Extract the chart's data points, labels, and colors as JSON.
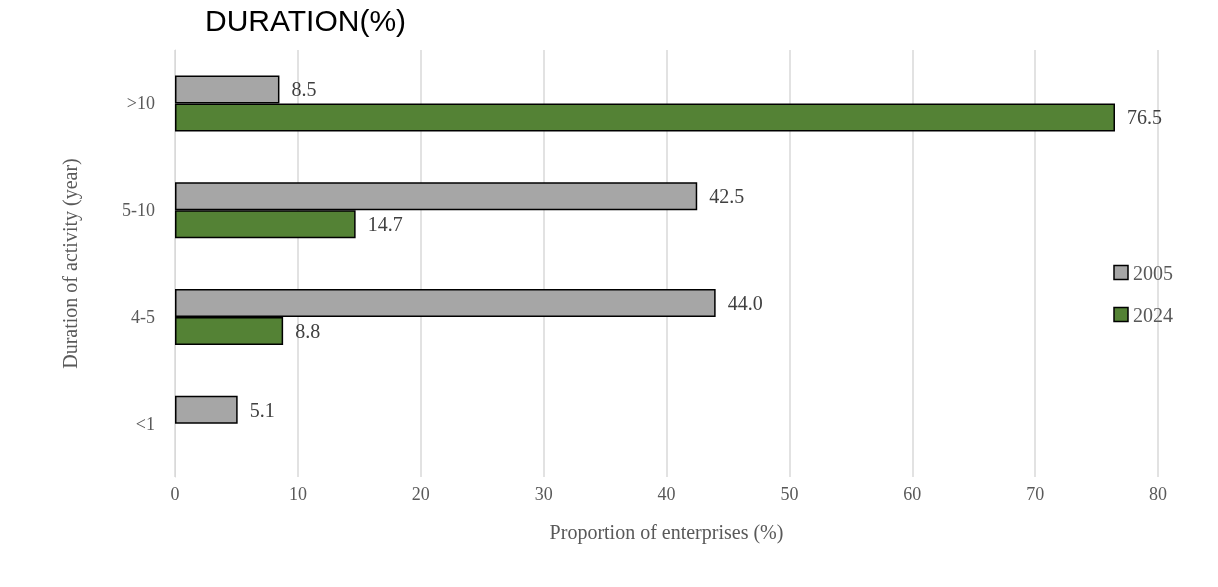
{
  "chart_data": {
    "type": "bar",
    "orientation": "horizontal",
    "title": "DURATION(%)",
    "xlabel": "Proportion of enterprises (%)",
    "ylabel": "Duration of activity (year)",
    "categories": [
      ">10",
      "5-10",
      "4-5",
      "<1"
    ],
    "series": [
      {
        "name": "2005",
        "color": "#a6a6a6",
        "values": [
          8.5,
          42.5,
          44.0,
          5.1
        ],
        "value_labels": [
          "8.5",
          "42.5",
          "44.0",
          "5.1"
        ]
      },
      {
        "name": "2024",
        "color": "#548235",
        "values": [
          76.5,
          14.7,
          8.8,
          null
        ],
        "value_labels": [
          "76.5",
          "14.7",
          "8.8",
          null
        ]
      }
    ],
    "xlim": [
      0,
      80
    ],
    "xticks": [
      0,
      10,
      20,
      30,
      40,
      50,
      60,
      70,
      80
    ],
    "grid": "x",
    "legend": "right"
  }
}
